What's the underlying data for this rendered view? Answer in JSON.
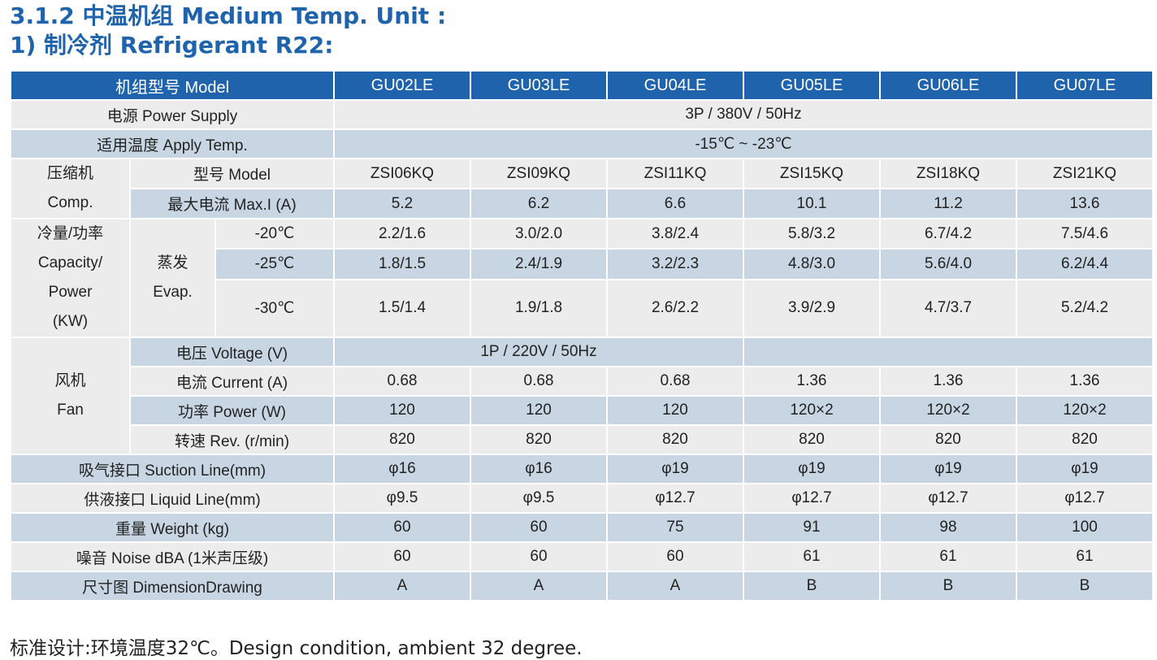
{
  "title": {
    "line1": "3.1.2 中温机组 Medium Temp. Unit :",
    "line2": "1) 制冷剂 Refrigerant R22:"
  },
  "colors": {
    "header_bg": "#1f63ad",
    "blue_row": "#c8d6e3",
    "grey_row": "#ececec",
    "title_text": "#1f63ad"
  },
  "table": {
    "header_label": "机组型号 Model",
    "models": [
      "GU02LE",
      "GU03LE",
      "GU04LE",
      "GU05LE",
      "GU06LE",
      "GU07LE"
    ],
    "power_supply": {
      "label": "电源 Power Supply",
      "value": "3P / 380V / 50Hz"
    },
    "apply_temp": {
      "label": "适用温度 Apply Temp.",
      "value": "-15℃ ~ -23℃"
    },
    "compressor": {
      "label_cn": "压缩机",
      "label_en": "Comp.",
      "model": {
        "label": "型号 Model",
        "values": [
          "ZSI06KQ",
          "ZSI09KQ",
          "ZSI11KQ",
          "ZSI15KQ",
          "ZSI18KQ",
          "ZSI21KQ"
        ]
      },
      "max_current": {
        "label": "最大电流 Max.I (A)",
        "values": [
          "5.2",
          "6.2",
          "6.6",
          "10.1",
          "11.2",
          "13.6"
        ]
      }
    },
    "capacity": {
      "label_1": "冷量/功率",
      "label_2": "Capacity/",
      "label_3": "Power",
      "label_4": "(KW)",
      "evap_cn": "蒸发",
      "evap_en": "Evap.",
      "rows": [
        {
          "temp": "-20℃",
          "values": [
            "2.2/1.6",
            "3.0/2.0",
            "3.8/2.4",
            "5.8/3.2",
            "6.7/4.2",
            "7.5/4.6"
          ]
        },
        {
          "temp": "-25℃",
          "values": [
            "1.8/1.5",
            "2.4/1.9",
            "3.2/2.3",
            "4.8/3.0",
            "5.6/4.0",
            "6.2/4.4"
          ]
        },
        {
          "temp": "-30℃",
          "values": [
            "1.5/1.4",
            "1.9/1.8",
            "2.6/2.2",
            "3.9/2.9",
            "4.7/3.7",
            "5.2/4.2"
          ]
        }
      ]
    },
    "fan": {
      "label_cn": "风机",
      "label_en": "Fan",
      "voltage": {
        "label": "电压 Voltage (V)",
        "value": "1P / 220V / 50Hz"
      },
      "current": {
        "label": "电流 Current (A)",
        "values": [
          "0.68",
          "0.68",
          "0.68",
          "1.36",
          "1.36",
          "1.36"
        ]
      },
      "power": {
        "label": "功率 Power (W)",
        "values": [
          "120",
          "120",
          "120",
          "120×2",
          "120×2",
          "120×2"
        ]
      },
      "rev": {
        "label": "转速 Rev. (r/min)",
        "values": [
          "820",
          "820",
          "820",
          "820",
          "820",
          "820"
        ]
      }
    },
    "suction": {
      "label": "吸气接口 Suction Line(mm)",
      "values": [
        "φ16",
        "φ16",
        "φ19",
        "φ19",
        "φ19",
        "φ19"
      ]
    },
    "liquid": {
      "label": "供液接口 Liquid Line(mm)",
      "values": [
        "φ9.5",
        "φ9.5",
        "φ12.7",
        "φ12.7",
        "φ12.7",
        "φ12.7"
      ]
    },
    "weight": {
      "label": "重量 Weight (kg)",
      "values": [
        "60",
        "60",
        "75",
        "91",
        "98",
        "100"
      ]
    },
    "noise": {
      "label": "噪音 Noise dBA (1米声压级)",
      "values": [
        "60",
        "60",
        "60",
        "61",
        "61",
        "61"
      ]
    },
    "dimension": {
      "label": "尺寸图 DimensionDrawing",
      "values": [
        "A",
        "A",
        "A",
        "B",
        "B",
        "B"
      ]
    }
  },
  "footnote": "标准设计:环境温度32℃。Design condition, ambient 32 degree."
}
